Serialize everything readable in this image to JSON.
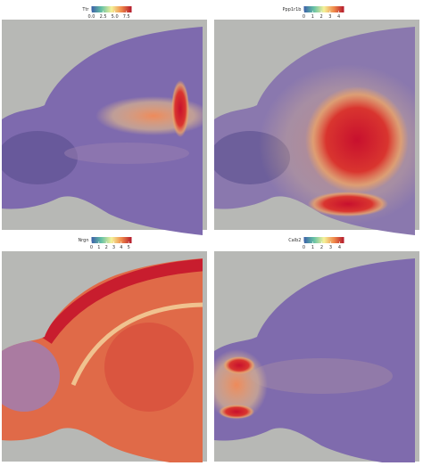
{
  "panels": [
    {
      "title": "Ttr",
      "ticks": [
        {
          "value": 0,
          "label": "0.0"
        },
        {
          "value": 2.5,
          "label": "2.5"
        },
        {
          "value": 5,
          "label": "5.0"
        },
        {
          "value": 7.5,
          "label": "7.5"
        }
      ],
      "lim": [
        0,
        8.6
      ]
    },
    {
      "title": "Ppp1r1b",
      "ticks": [
        0,
        1,
        2,
        3,
        4
      ],
      "lim": [
        0,
        4.6
      ]
    },
    {
      "title": "Nrgn",
      "ticks": [
        0,
        1,
        2,
        3,
        4,
        5
      ],
      "lim": [
        0,
        5.4
      ]
    },
    {
      "title": "Calb2",
      "ticks": [
        0,
        1,
        2,
        3,
        4
      ],
      "lim": [
        0,
        4.5
      ]
    }
  ]
}
